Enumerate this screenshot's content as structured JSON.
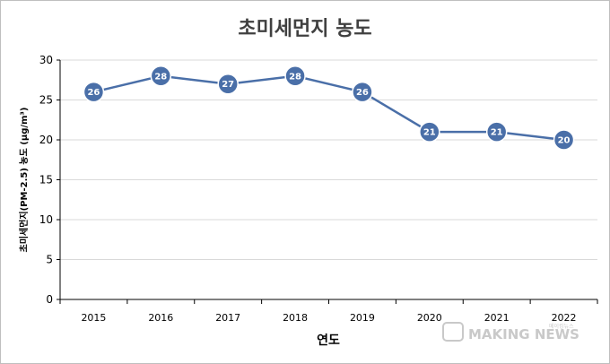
{
  "chart_data": {
    "type": "line",
    "title": "초미세먼지 농도",
    "xlabel": "연도",
    "ylabel": "초미세먼지(PM-2.5) 농도 (μg/m³)",
    "categories": [
      "2015",
      "2016",
      "2017",
      "2018",
      "2019",
      "2020",
      "2021",
      "2022"
    ],
    "series": [
      {
        "values": [
          26,
          28,
          27,
          28,
          26,
          21,
          21,
          20
        ]
      }
    ],
    "ylim": [
      0,
      30
    ],
    "yticks": [
      0,
      5,
      10,
      15,
      20,
      25,
      30
    ],
    "grid": true,
    "legend": "none",
    "colors": {
      "line": "#4a6fa8",
      "marker": "#4a6fa8",
      "marker_edge": "#ffffff",
      "grid": "#d9d9d9"
    }
  },
  "watermark": {
    "text": "MAKING NEWS",
    "sub": "메이킹뉴스"
  }
}
